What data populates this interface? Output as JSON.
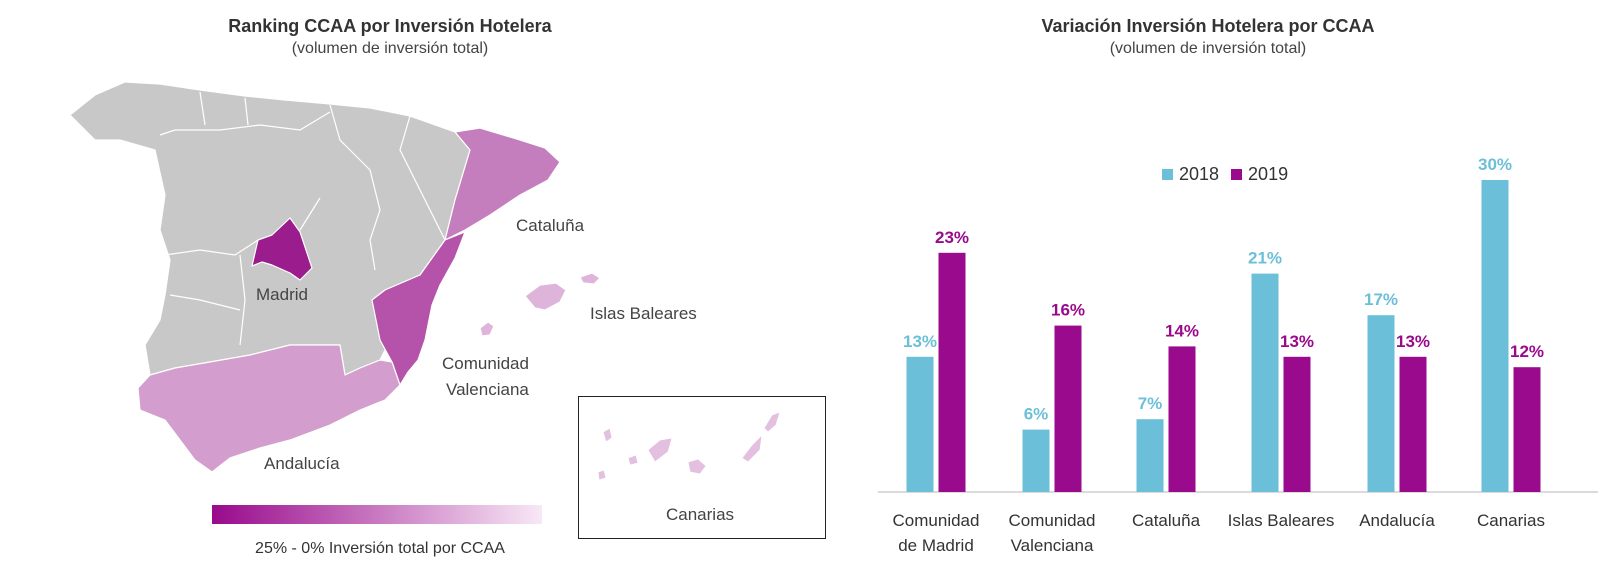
{
  "colors": {
    "madrid": "#9b1c8c",
    "valenciana": "#b552a9",
    "cataluna": "#c47dbd",
    "andalucia": "#d39dcd",
    "baleares": "#dfb4da",
    "canarias": "#e3c0df",
    "other": "#c8c8c8",
    "series_2018": "#6cbfd8",
    "series_2019": "#990a8c",
    "gradient_start": "#990a8c",
    "gradient_end": "#f8e8f6"
  },
  "map_panel": {
    "title": "Ranking CCAA por Inversión Hotelera",
    "subtitle": "(volumen de inversión total)",
    "labels": {
      "cataluna": "Cataluña",
      "madrid": "Madrid",
      "baleares": "Islas Baleares",
      "valenciana_1": "Comunidad",
      "valenciana_2": "Valenciana",
      "andalucia": "Andalucía",
      "canarias": "Canarias"
    },
    "scale_caption": "25% - 0% Inversión total por CCAA"
  },
  "chart_data": {
    "type": "bar",
    "title": "Variación Inversión Hotelera por CCAA",
    "subtitle": "(volumen de inversión total)",
    "categories": [
      [
        "Comunidad",
        "de Madrid"
      ],
      [
        "Comunidad",
        "Valenciana"
      ],
      [
        "Cataluña"
      ],
      [
        "Islas Baleares"
      ],
      [
        "Andalucía"
      ],
      [
        "Canarias"
      ]
    ],
    "series": [
      {
        "name": "2018",
        "values": [
          13,
          6,
          7,
          21,
          17,
          30
        ],
        "labels": [
          "13%",
          "6%",
          "7%",
          "21%",
          "17%",
          "30%"
        ]
      },
      {
        "name": "2019",
        "values": [
          23,
          16,
          14,
          13,
          13,
          12
        ],
        "labels": [
          "23%",
          "16%",
          "14%",
          "13%",
          "13%",
          "12%"
        ]
      }
    ],
    "ylim": [
      0,
      30
    ],
    "grid": false,
    "legend": "top"
  }
}
